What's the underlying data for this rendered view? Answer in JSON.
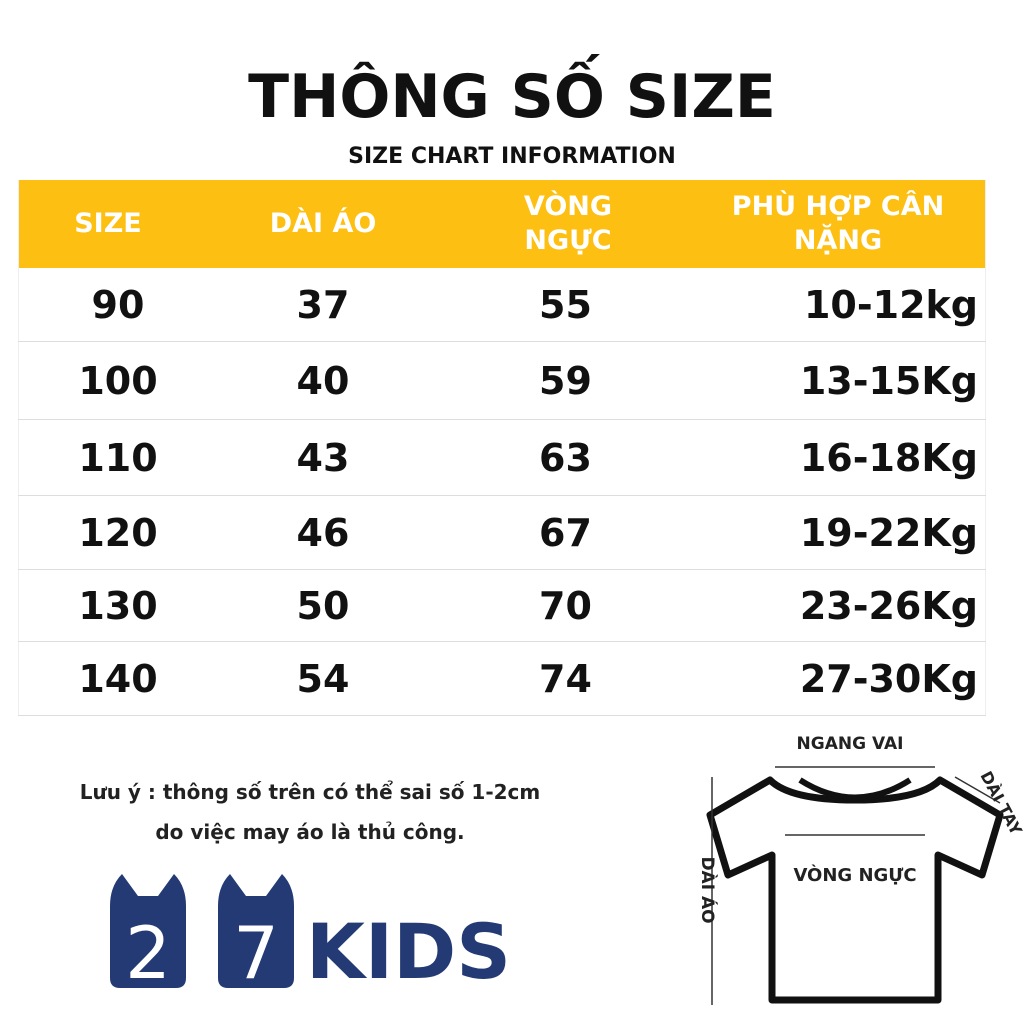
{
  "header": {
    "title": "THÔNG SỐ SIZE",
    "subtitle": "SIZE CHART INFORMATION"
  },
  "table": {
    "columns": [
      "SIZE",
      "DÀI ÁO",
      "VÒNG NGỰC",
      "PHÙ HỢP CÂN NẶNG"
    ],
    "rows": [
      [
        90,
        37,
        55,
        "10-12kg"
      ],
      [
        100,
        40,
        59,
        "13-15Kg"
      ],
      [
        110,
        43,
        63,
        "16-18Kg"
      ],
      [
        120,
        46,
        67,
        "19-22Kg"
      ],
      [
        130,
        50,
        70,
        "23-26Kg"
      ],
      [
        140,
        54,
        74,
        "27-30Kg"
      ]
    ]
  },
  "note": [
    "Lưu ý : thông số trên có thể sai số 1-2cm",
    "do việc may áo là thủ công."
  ],
  "logo": {
    "digits": [
      "2",
      "7"
    ],
    "text": "KIDS"
  },
  "diagram": {
    "labels": [
      "NGANG VAI",
      "DÀI TAY",
      "VÒNG NGỰC",
      "DÀI ÁO"
    ]
  }
}
